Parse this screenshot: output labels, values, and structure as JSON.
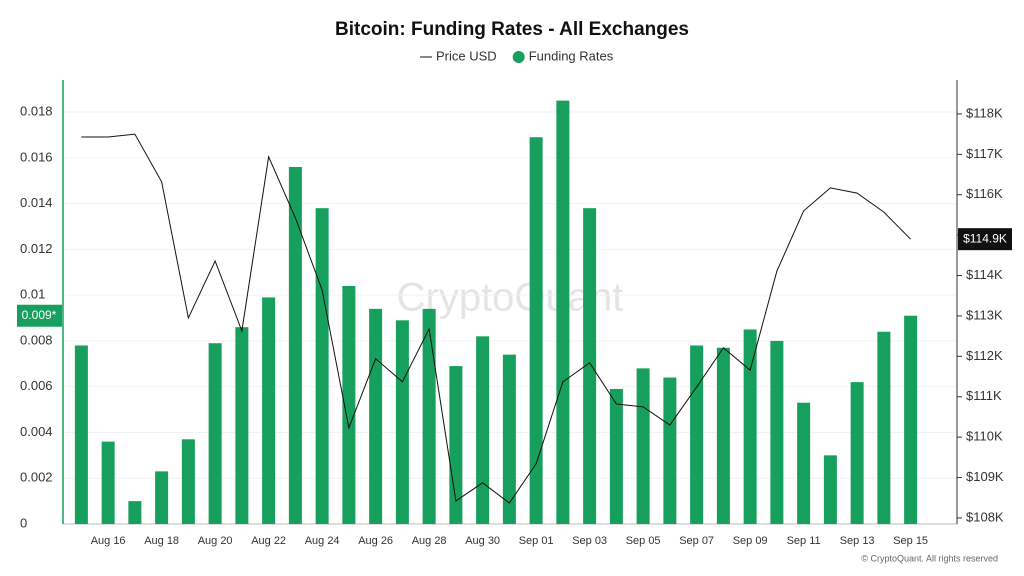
{
  "chart_data": {
    "type": "bar",
    "title": "Bitcoin: Funding Rates - All Exchanges",
    "watermark": "CryptoQuant",
    "footer": "© CryptoQuant. All rights reserved",
    "categories": [
      null,
      "Aug 16",
      null,
      "Aug 18",
      null,
      "Aug 20",
      null,
      "Aug 22",
      null,
      "Aug 24",
      null,
      "Aug 26",
      null,
      "Aug 28",
      null,
      "Aug 30",
      null,
      "Sep 01",
      null,
      "Sep 03",
      null,
      "Sep 05",
      null,
      "Sep 07",
      null,
      "Sep 09",
      null,
      "Sep 11",
      null,
      "Sep 13",
      null,
      "Sep 15"
    ],
    "series": [
      {
        "name": "Funding Rates",
        "type": "bar",
        "color": "#17a05d",
        "current_label": "0.009*",
        "values": [
          0.0078,
          0.0036,
          0.001,
          0.0023,
          0.0037,
          0.0079,
          0.0086,
          0.0099,
          0.0156,
          0.0138,
          0.0104,
          0.0094,
          0.0089,
          0.0094,
          0.0069,
          0.0082,
          0.0074,
          0.0169,
          0.0185,
          0.0138,
          0.0059,
          0.0068,
          0.0064,
          0.0078,
          0.0077,
          0.0085,
          0.008,
          0.0053,
          0.003,
          0.0062,
          0.0084,
          0.0091
        ]
      },
      {
        "name": "Price USD",
        "type": "line",
        "axis": "y2",
        "color": "#111111",
        "current_label": "$114.9K",
        "values": [
          117430,
          117430,
          117500,
          116320,
          112950,
          114360,
          112630,
          116940,
          115430,
          113640,
          110230,
          111940,
          111370,
          112680,
          108420,
          108870,
          108370,
          109340,
          111370,
          111840,
          110820,
          110750,
          110300,
          111240,
          112210,
          111660,
          114110,
          115600,
          116170,
          116040,
          115570,
          114900
        ]
      }
    ],
    "ylim": [
      0,
      0.0194
    ],
    "yticks": [
      0,
      0.002,
      0.004,
      0.006,
      0.008,
      0.01,
      0.012,
      0.014,
      0.016,
      0.018
    ],
    "y2lim": [
      107850,
      118840
    ],
    "y2ticks": [
      {
        "value": 108000,
        "label": "$108K"
      },
      {
        "value": 109000,
        "label": "$109K"
      },
      {
        "value": 110000,
        "label": "$110K"
      },
      {
        "value": 111000,
        "label": "$111K"
      },
      {
        "value": 112000,
        "label": "$112K"
      },
      {
        "value": 113000,
        "label": "$113K"
      },
      {
        "value": 114000,
        "label": "$114K"
      },
      {
        "value": 115000,
        "label": "$115K"
      },
      {
        "value": 116000,
        "label": "$116K"
      },
      {
        "value": 117000,
        "label": "$117K"
      },
      {
        "value": 118000,
        "label": "$118K"
      }
    ],
    "grid": true
  }
}
